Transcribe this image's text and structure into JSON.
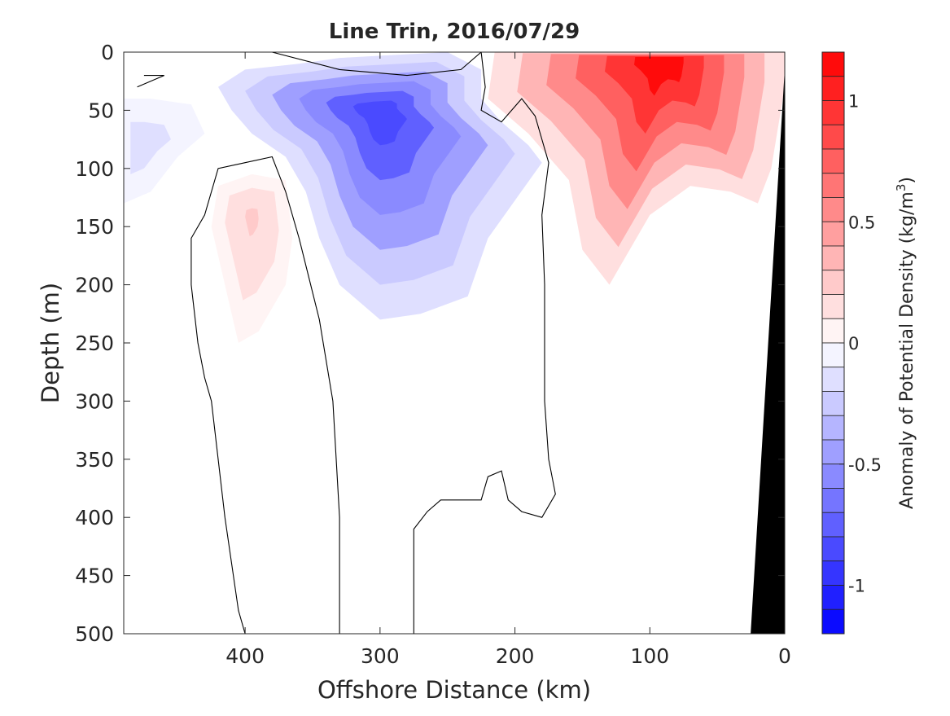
{
  "chart_data": {
    "type": "heatmap",
    "title": "Line Trin, 2016/07/29",
    "xlabel": "Offshore Distance (km)",
    "ylabel": "Depth (m)",
    "xlim": [
      490,
      0
    ],
    "ylim": [
      0,
      500
    ],
    "x_reversed": true,
    "y_reversed": true,
    "xticks": [
      400,
      300,
      200,
      100,
      0
    ],
    "xtick_labels": [
      "400",
      "300",
      "200",
      "100",
      "0"
    ],
    "yticks": [
      0,
      50,
      100,
      150,
      200,
      250,
      300,
      350,
      400,
      450,
      500
    ],
    "ytick_labels": [
      "0",
      "50",
      "100",
      "150",
      "200",
      "250",
      "300",
      "350",
      "400",
      "450",
      "500"
    ],
    "grid": false,
    "colorbar": {
      "label": "Anomaly of Potential Density (kg/m",
      "label_superscript": "3",
      "label_close": ")",
      "range": [
        -1.2,
        1.2
      ],
      "levels": 24,
      "ticks": [
        1,
        0.5,
        0,
        -0.5,
        -1
      ],
      "tick_labels": [
        "1",
        "0.5",
        "0",
        "-0.5",
        "-1"
      ],
      "positive_color": "#ff0000",
      "negative_color": "#0000ff",
      "zero_color": "#ffffff"
    },
    "regions": [
      {
        "name": "positive surface anomaly (nearshore)",
        "peak_value": 1.1,
        "center_distance_km": 90,
        "center_depth_m": 5,
        "polygon": [
          [
            140,
            0
          ],
          [
            0,
            0
          ],
          [
            0,
            30
          ],
          [
            10,
            100
          ],
          [
            20,
            130
          ],
          [
            40,
            120
          ],
          [
            70,
            115
          ],
          [
            100,
            140
          ],
          [
            130,
            200
          ],
          [
            150,
            170
          ],
          [
            160,
            110
          ],
          [
            190,
            70
          ],
          [
            220,
            40
          ],
          [
            215,
            0
          ]
        ]
      },
      {
        "name": "positive subsurface anomaly",
        "peak_value": 0.2,
        "center_distance_km": 395,
        "center_depth_m": 140,
        "polygon": [
          [
            420,
            115
          ],
          [
            395,
            105
          ],
          [
            370,
            110
          ],
          [
            365,
            160
          ],
          [
            370,
            200
          ],
          [
            390,
            240
          ],
          [
            405,
            250
          ],
          [
            415,
            200
          ],
          [
            425,
            150
          ]
        ]
      },
      {
        "name": "negative anomaly (offshore eddy)",
        "peak_value": -0.85,
        "center_distance_km": 300,
        "center_depth_m": 50,
        "polygon": [
          [
            330,
            5
          ],
          [
            250,
            0
          ],
          [
            225,
            15
          ],
          [
            225,
            40
          ],
          [
            210,
            60
          ],
          [
            190,
            80
          ],
          [
            180,
            95
          ],
          [
            220,
            160
          ],
          [
            235,
            210
          ],
          [
            270,
            225
          ],
          [
            300,
            230
          ],
          [
            330,
            200
          ],
          [
            345,
            160
          ],
          [
            355,
            120
          ],
          [
            370,
            90
          ],
          [
            395,
            70
          ],
          [
            410,
            50
          ],
          [
            420,
            30
          ],
          [
            400,
            15
          ],
          [
            360,
            10
          ]
        ]
      },
      {
        "name": "negative anomaly (far offshore)",
        "peak_value": -0.15,
        "center_distance_km": 480,
        "center_depth_m": 80,
        "polygon": [
          [
            490,
            40
          ],
          [
            470,
            40
          ],
          [
            440,
            45
          ],
          [
            430,
            70
          ],
          [
            450,
            90
          ],
          [
            470,
            120
          ],
          [
            490,
            130
          ]
        ]
      }
    ],
    "zero_contours": [
      [
        [
          430,
          0
        ],
        [
          380,
          0
        ],
        [
          330,
          15
        ],
        [
          280,
          20
        ],
        [
          240,
          15
        ],
        [
          225,
          0
        ]
      ],
      [
        [
          475,
          20
        ],
        [
          460,
          20
        ],
        [
          480,
          30
        ]
      ],
      [
        [
          225,
          0
        ],
        [
          222,
          30
        ],
        [
          225,
          50
        ],
        [
          210,
          60
        ],
        [
          195,
          40
        ],
        [
          185,
          55
        ],
        [
          180,
          75
        ],
        [
          175,
          95
        ],
        [
          180,
          140
        ],
        [
          178,
          200
        ],
        [
          178,
          300
        ],
        [
          175,
          350
        ],
        [
          170,
          380
        ],
        [
          180,
          400
        ],
        [
          195,
          395
        ],
        [
          205,
          385
        ],
        [
          210,
          360
        ],
        [
          220,
          365
        ],
        [
          225,
          385
        ],
        [
          255,
          385
        ],
        [
          265,
          395
        ],
        [
          275,
          410
        ],
        [
          275,
          500
        ]
      ],
      [
        [
          330,
          500
        ],
        [
          330,
          400
        ],
        [
          335,
          300
        ],
        [
          345,
          230
        ],
        [
          360,
          160
        ],
        [
          370,
          120
        ],
        [
          380,
          90
        ],
        [
          400,
          95
        ],
        [
          420,
          100
        ],
        [
          430,
          140
        ],
        [
          440,
          160
        ],
        [
          440,
          200
        ],
        [
          435,
          250
        ],
        [
          430,
          280
        ],
        [
          425,
          300
        ],
        [
          420,
          350
        ],
        [
          415,
          400
        ],
        [
          410,
          440
        ],
        [
          405,
          480
        ],
        [
          400,
          500
        ]
      ]
    ],
    "bathymetry": {
      "label": "seafloor",
      "polygon": [
        [
          0,
          20
        ],
        [
          25,
          500
        ],
        [
          0,
          500
        ]
      ]
    }
  }
}
